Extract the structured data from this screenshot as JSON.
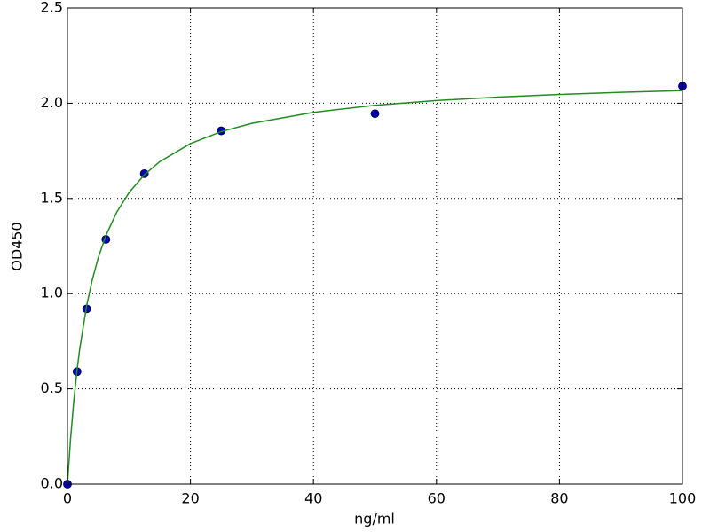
{
  "chart_data": {
    "type": "scatter",
    "xlabel": "ng/ml",
    "ylabel": "OD450",
    "xlim": [
      0,
      100
    ],
    "ylim": [
      0,
      2.5
    ],
    "xticks": [
      0,
      20,
      40,
      60,
      80,
      100
    ],
    "yticks": [
      {
        "value": 0,
        "label": "0.0"
      },
      {
        "value": 0.5,
        "label": "0.5"
      },
      {
        "value": 1,
        "label": "1.0"
      },
      {
        "value": 1.5,
        "label": "1.5"
      },
      {
        "value": 2,
        "label": "2.0"
      },
      {
        "value": 2.5,
        "label": "2.5"
      }
    ],
    "grid": true,
    "series": [
      {
        "type": "scatter",
        "color": "#0000b0",
        "x": [
          0,
          1.5625,
          3.125,
          6.25,
          12.5,
          25,
          50,
          100
        ],
        "values": [
          0,
          0.59,
          0.92,
          1.285,
          1.63,
          1.855,
          1.945,
          2.09
        ]
      },
      {
        "type": "line",
        "color": "#228b22",
        "x": [
          0,
          0.5,
          1,
          1.5625,
          2,
          3.125,
          4,
          5,
          6.25,
          8,
          10,
          12.5,
          15,
          20,
          25,
          30,
          40,
          50,
          60,
          70,
          80,
          90,
          100
        ],
        "values": [
          0,
          0.236,
          0.426,
          0.599,
          0.711,
          0.937,
          1.068,
          1.188,
          1.305,
          1.427,
          1.53,
          1.624,
          1.693,
          1.788,
          1.851,
          1.894,
          1.952,
          1.989,
          2.014,
          2.032,
          2.046,
          2.057,
          2.066
        ]
      }
    ]
  }
}
